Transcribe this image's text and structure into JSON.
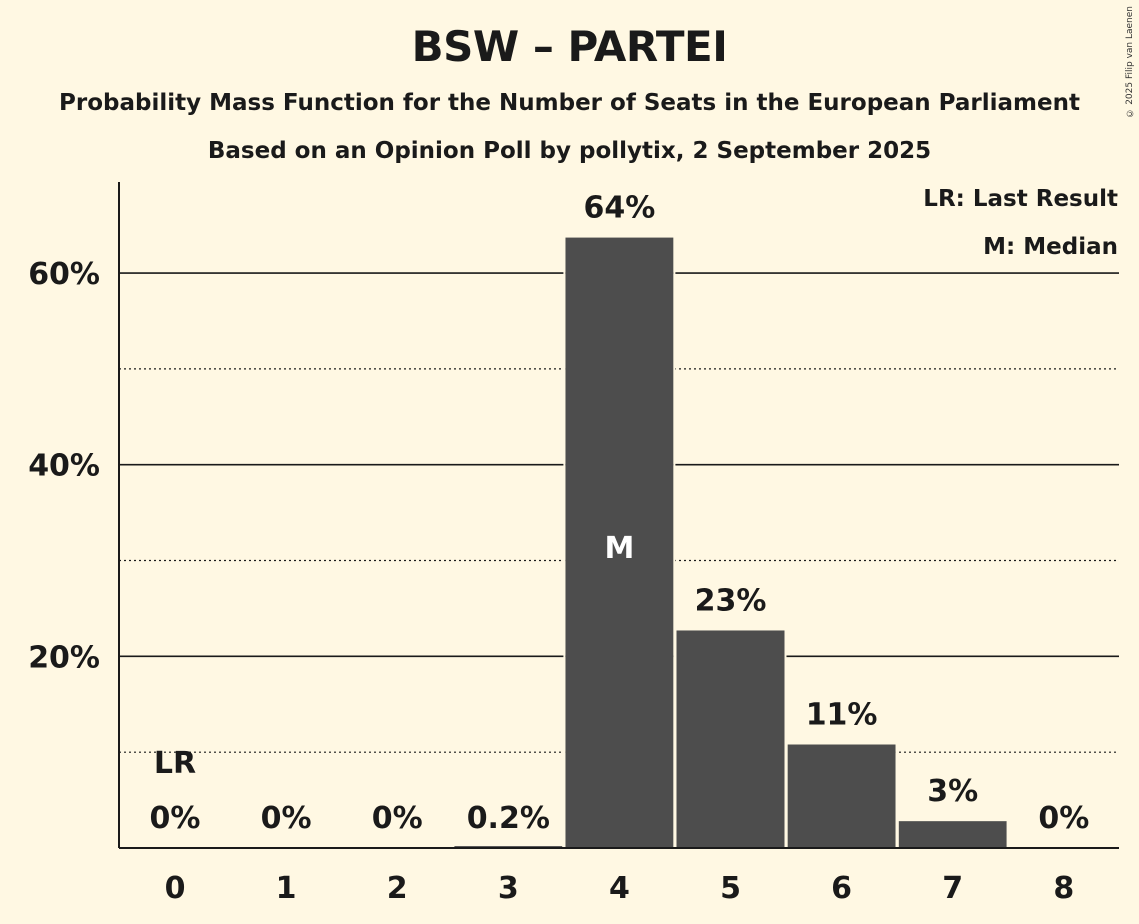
{
  "header": {
    "title": "BSW – PARTEI",
    "subtitle": "Probability Mass Function for the Number of Seats in the European Parliament",
    "subtitle2": "Based on an Opinion Poll by pollytix, 2 September 2025",
    "copyright": "© 2025 Filip van Laenen"
  },
  "legend": {
    "last_result": "LR: Last Result",
    "median": "M: Median"
  },
  "colors": {
    "background": "#fff8e3",
    "bar": "#4d4d4d",
    "text": "#1a1a1a"
  },
  "chart_data": {
    "type": "bar",
    "categories": [
      "0",
      "1",
      "2",
      "3",
      "4",
      "5",
      "6",
      "7",
      "8"
    ],
    "values": [
      0,
      0,
      0,
      0.2,
      63.7,
      22.7,
      10.8,
      2.8,
      0
    ],
    "value_labels": [
      "0%",
      "0%",
      "0%",
      "0.2%",
      "64%",
      "23%",
      "11%",
      "3%",
      "0%"
    ],
    "last_result_index": 0,
    "last_result_label": "LR",
    "median_index": 4,
    "median_label": "M",
    "ylim": [
      0,
      69.5
    ],
    "yticks": [
      {
        "value": 20,
        "label": "20%"
      },
      {
        "value": 40,
        "label": "40%"
      },
      {
        "value": 60,
        "label": "60%"
      }
    ],
    "minor_gridlines": [
      10,
      30,
      50
    ],
    "title": "BSW – PARTEI",
    "xlabel": "",
    "ylabel": ""
  }
}
